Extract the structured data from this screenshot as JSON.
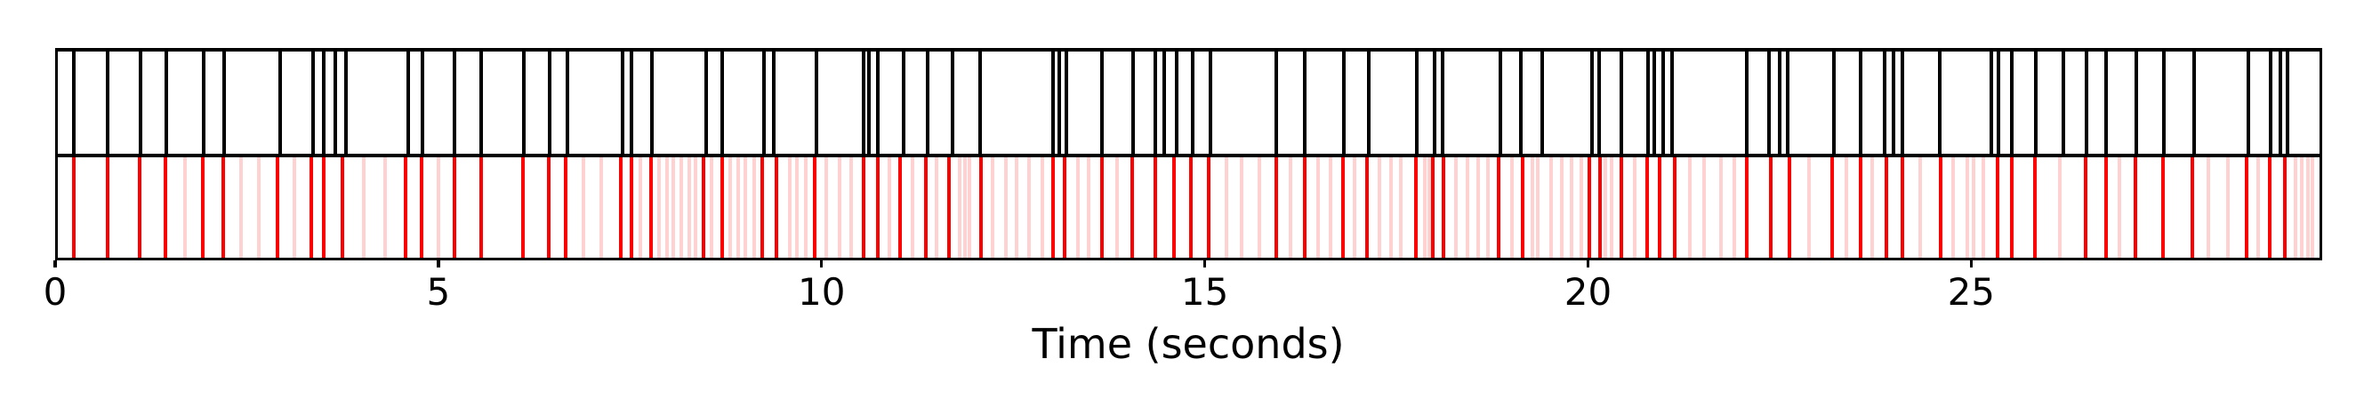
{
  "chart_data": {
    "type": "event-raster",
    "title": "",
    "xlabel": "Time (seconds)",
    "ylabel": "",
    "x_ticks": [
      0,
      5,
      10,
      15,
      20,
      25
    ],
    "xlim": [
      0,
      29.58
    ],
    "grid": false,
    "legend": "none",
    "rows": [
      "top: reference event train (black)",
      "bottom: comparison event train (red strong, pink faint)"
    ],
    "colors": {
      "top_events": "#000000",
      "bottom_events_strong": "#ff0000",
      "bottom_events_faint": "#ff0000",
      "faint_opacity": 0.18,
      "axes": "#000000",
      "background": "#ffffff"
    },
    "series": [
      {
        "name": "top-black-events",
        "band": "top",
        "color": "#000000",
        "opacity": 1,
        "times": [
          0.24,
          0.69,
          1.11,
          1.45,
          1.94,
          2.2,
          2.94,
          3.36,
          3.51,
          3.65,
          3.79,
          4.61,
          4.79,
          5.21,
          5.56,
          6.12,
          6.45,
          6.69,
          7.4,
          7.52,
          7.79,
          8.49,
          8.7,
          9.25,
          9.38,
          9.93,
          10.55,
          10.62,
          10.74,
          11.07,
          11.38,
          11.71,
          12.07,
          13.02,
          13.1,
          13.19,
          13.66,
          14.07,
          14.36,
          14.47,
          14.63,
          14.84,
          15.07,
          15.93,
          16.3,
          16.81,
          17.14,
          17.77,
          18.0,
          18.1,
          18.86,
          19.13,
          19.4,
          20.05,
          20.15,
          20.43,
          20.78,
          20.87,
          20.98,
          21.1,
          22.07,
          22.36,
          22.5,
          22.61,
          23.21,
          23.56,
          23.87,
          23.99,
          24.1,
          24.59,
          25.26,
          25.36,
          25.53,
          25.84,
          26.2,
          26.5,
          26.76,
          27.15,
          27.52,
          27.91,
          28.62,
          28.91,
          29.03,
          29.13
        ]
      },
      {
        "name": "bottom-red-strong-events",
        "band": "bottom",
        "color": "#ff0000",
        "opacity": 1,
        "times": [
          0.24,
          0.69,
          1.1,
          1.44,
          1.93,
          2.19,
          2.9,
          3.34,
          3.5,
          3.75,
          4.57,
          4.78,
          5.21,
          5.56,
          6.1,
          6.44,
          6.66,
          7.38,
          7.52,
          7.77,
          8.46,
          8.7,
          9.23,
          9.41,
          9.91,
          10.55,
          10.74,
          11.02,
          11.36,
          11.66,
          12.08,
          13.02,
          13.17,
          13.66,
          14.05,
          14.36,
          14.6,
          14.82,
          15.05,
          15.93,
          16.3,
          16.8,
          17.12,
          17.75,
          17.98,
          18.11,
          18.83,
          19.15,
          20.02,
          20.16,
          20.44,
          20.77,
          20.94,
          21.13,
          22.07,
          22.38,
          22.63,
          23.19,
          23.56,
          23.89,
          24.1,
          24.6,
          25.34,
          25.53,
          25.83,
          26.49,
          26.76,
          27.14,
          27.5,
          27.88,
          28.59,
          28.89,
          29.09
        ]
      },
      {
        "name": "bottom-pink-faint-events",
        "band": "bottom",
        "color": "#ff0000",
        "opacity": 0.18,
        "times": [
          1.7,
          2.42,
          2.66,
          3.12,
          4.03,
          4.3,
          5.0,
          6.89,
          7.13,
          7.63,
          7.88,
          7.98,
          8.07,
          8.17,
          8.27,
          8.36,
          8.56,
          8.81,
          8.91,
          9.0,
          9.12,
          9.58,
          9.68,
          9.79,
          10.06,
          10.24,
          10.39,
          10.88,
          11.19,
          11.5,
          11.8,
          11.87,
          11.93,
          12.23,
          12.4,
          12.55,
          12.71,
          12.88,
          13.35,
          13.49,
          13.86,
          15.28,
          15.48,
          15.71,
          16.12,
          16.48,
          16.64,
          16.95,
          17.28,
          17.43,
          17.56,
          17.87,
          17.93,
          18.28,
          18.43,
          18.57,
          18.7,
          19.01,
          19.28,
          19.34,
          19.52,
          19.66,
          19.79,
          19.91,
          20.23,
          20.31,
          20.61,
          21.33,
          21.52,
          21.73,
          21.91,
          22.88,
          23.37,
          23.71,
          24.33,
          24.76,
          24.95,
          25.03,
          25.16,
          26.16,
          26.93,
          28.09,
          28.35,
          28.74,
          29.23,
          29.31,
          29.39,
          29.45
        ]
      }
    ]
  }
}
